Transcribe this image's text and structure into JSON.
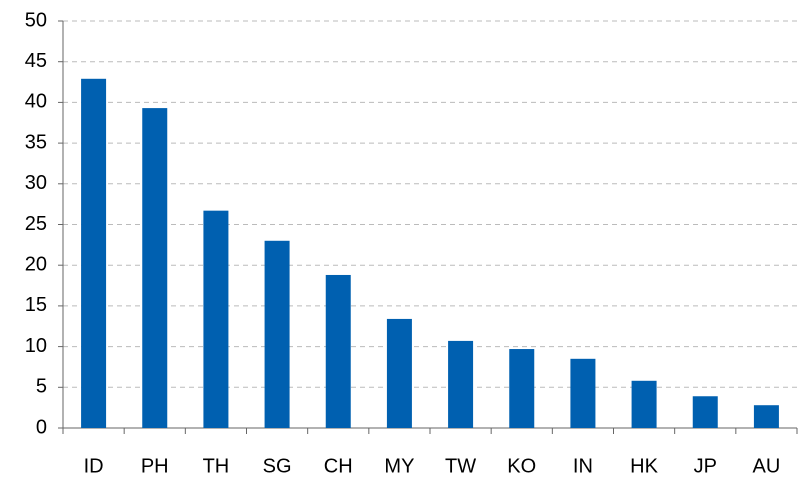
{
  "chart_data": {
    "type": "bar",
    "categories": [
      "ID",
      "PH",
      "TH",
      "SG",
      "CH",
      "MY",
      "TW",
      "KO",
      "IN",
      "HK",
      "JP",
      "AU"
    ],
    "values": [
      42.9,
      39.3,
      26.7,
      23.0,
      18.8,
      13.4,
      10.7,
      9.7,
      8.5,
      5.8,
      3.9,
      2.8
    ],
    "color": "#0060b0",
    "ylim": [
      0,
      50
    ],
    "yticks": [
      0,
      5,
      10,
      15,
      20,
      25,
      30,
      35,
      40,
      45,
      50
    ],
    "grid": true
  }
}
